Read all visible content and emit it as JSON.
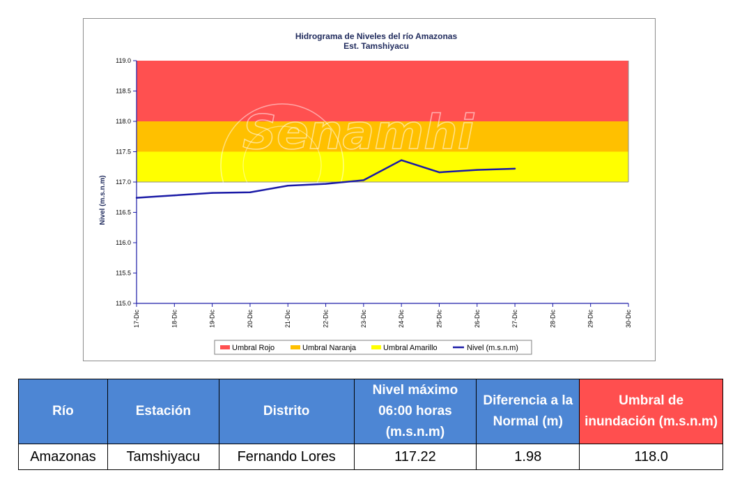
{
  "chart_data": {
    "type": "line",
    "title": "Hidrograma de Niveles del río Amazonas",
    "subtitle": "Est. Tamshiyacu",
    "ylabel": "Nivel (m.s.n.m)",
    "xlabel": "",
    "ylim": [
      115.0,
      119.0
    ],
    "y_ticks": [
      "115.0",
      "115.5",
      "116.0",
      "116.5",
      "117.0",
      "117.5",
      "118.0",
      "118.5",
      "119.0"
    ],
    "x_ticks": [
      "17-Dic",
      "18-Dic",
      "19-Dic",
      "20-Dic",
      "21-Dic",
      "22-Dic",
      "23-Dic",
      "24-Dic",
      "25-Dic",
      "26-Dic",
      "27-Dic",
      "28-Dic",
      "29-Dic",
      "30-Dic"
    ],
    "bands": [
      {
        "name": "Umbral Rojo",
        "from": 118.0,
        "to": 119.0,
        "color": "#ff5050"
      },
      {
        "name": "Umbral Naranja",
        "from": 117.5,
        "to": 118.0,
        "color": "#ffc000"
      },
      {
        "name": "Umbral Amarillo",
        "from": 117.0,
        "to": 117.5,
        "color": "#ffff00"
      }
    ],
    "series": [
      {
        "name": "Nivel (m.s.n.m)",
        "color": "#1a1aa6",
        "x": [
          "17-Dic",
          "18-Dic",
          "19-Dic",
          "20-Dic",
          "21-Dic",
          "22-Dic",
          "23-Dic",
          "24-Dic",
          "25-Dic",
          "26-Dic",
          "27-Dic"
        ],
        "values": [
          116.74,
          116.78,
          116.82,
          116.83,
          116.94,
          116.97,
          117.03,
          117.36,
          117.16,
          117.2,
          117.22
        ]
      }
    ],
    "legend": {
      "position": "bottom",
      "entries": [
        "Umbral Rojo",
        "Umbral Naranja",
        "Umbral Amarillo",
        "Nivel (m.s.n.m)"
      ]
    },
    "grid": false,
    "watermark": "Senamhi"
  },
  "table": {
    "headers": [
      "Río",
      "Estación",
      "Distrito",
      "Nivel máximo 06:00 horas (m.s.n.m)",
      "Diferencia a la Normal (m)",
      "Umbral de inundación (m.s.n.m)"
    ],
    "header_colors": [
      "#4d86d4",
      "#4d86d4",
      "#4d86d4",
      "#4d86d4",
      "#4d86d4",
      "#ff4f4f"
    ],
    "rows": [
      [
        "Amazonas",
        "Tamshiyacu",
        "Fernando Lores",
        "117.22",
        "1.98",
        "118.0"
      ]
    ]
  }
}
